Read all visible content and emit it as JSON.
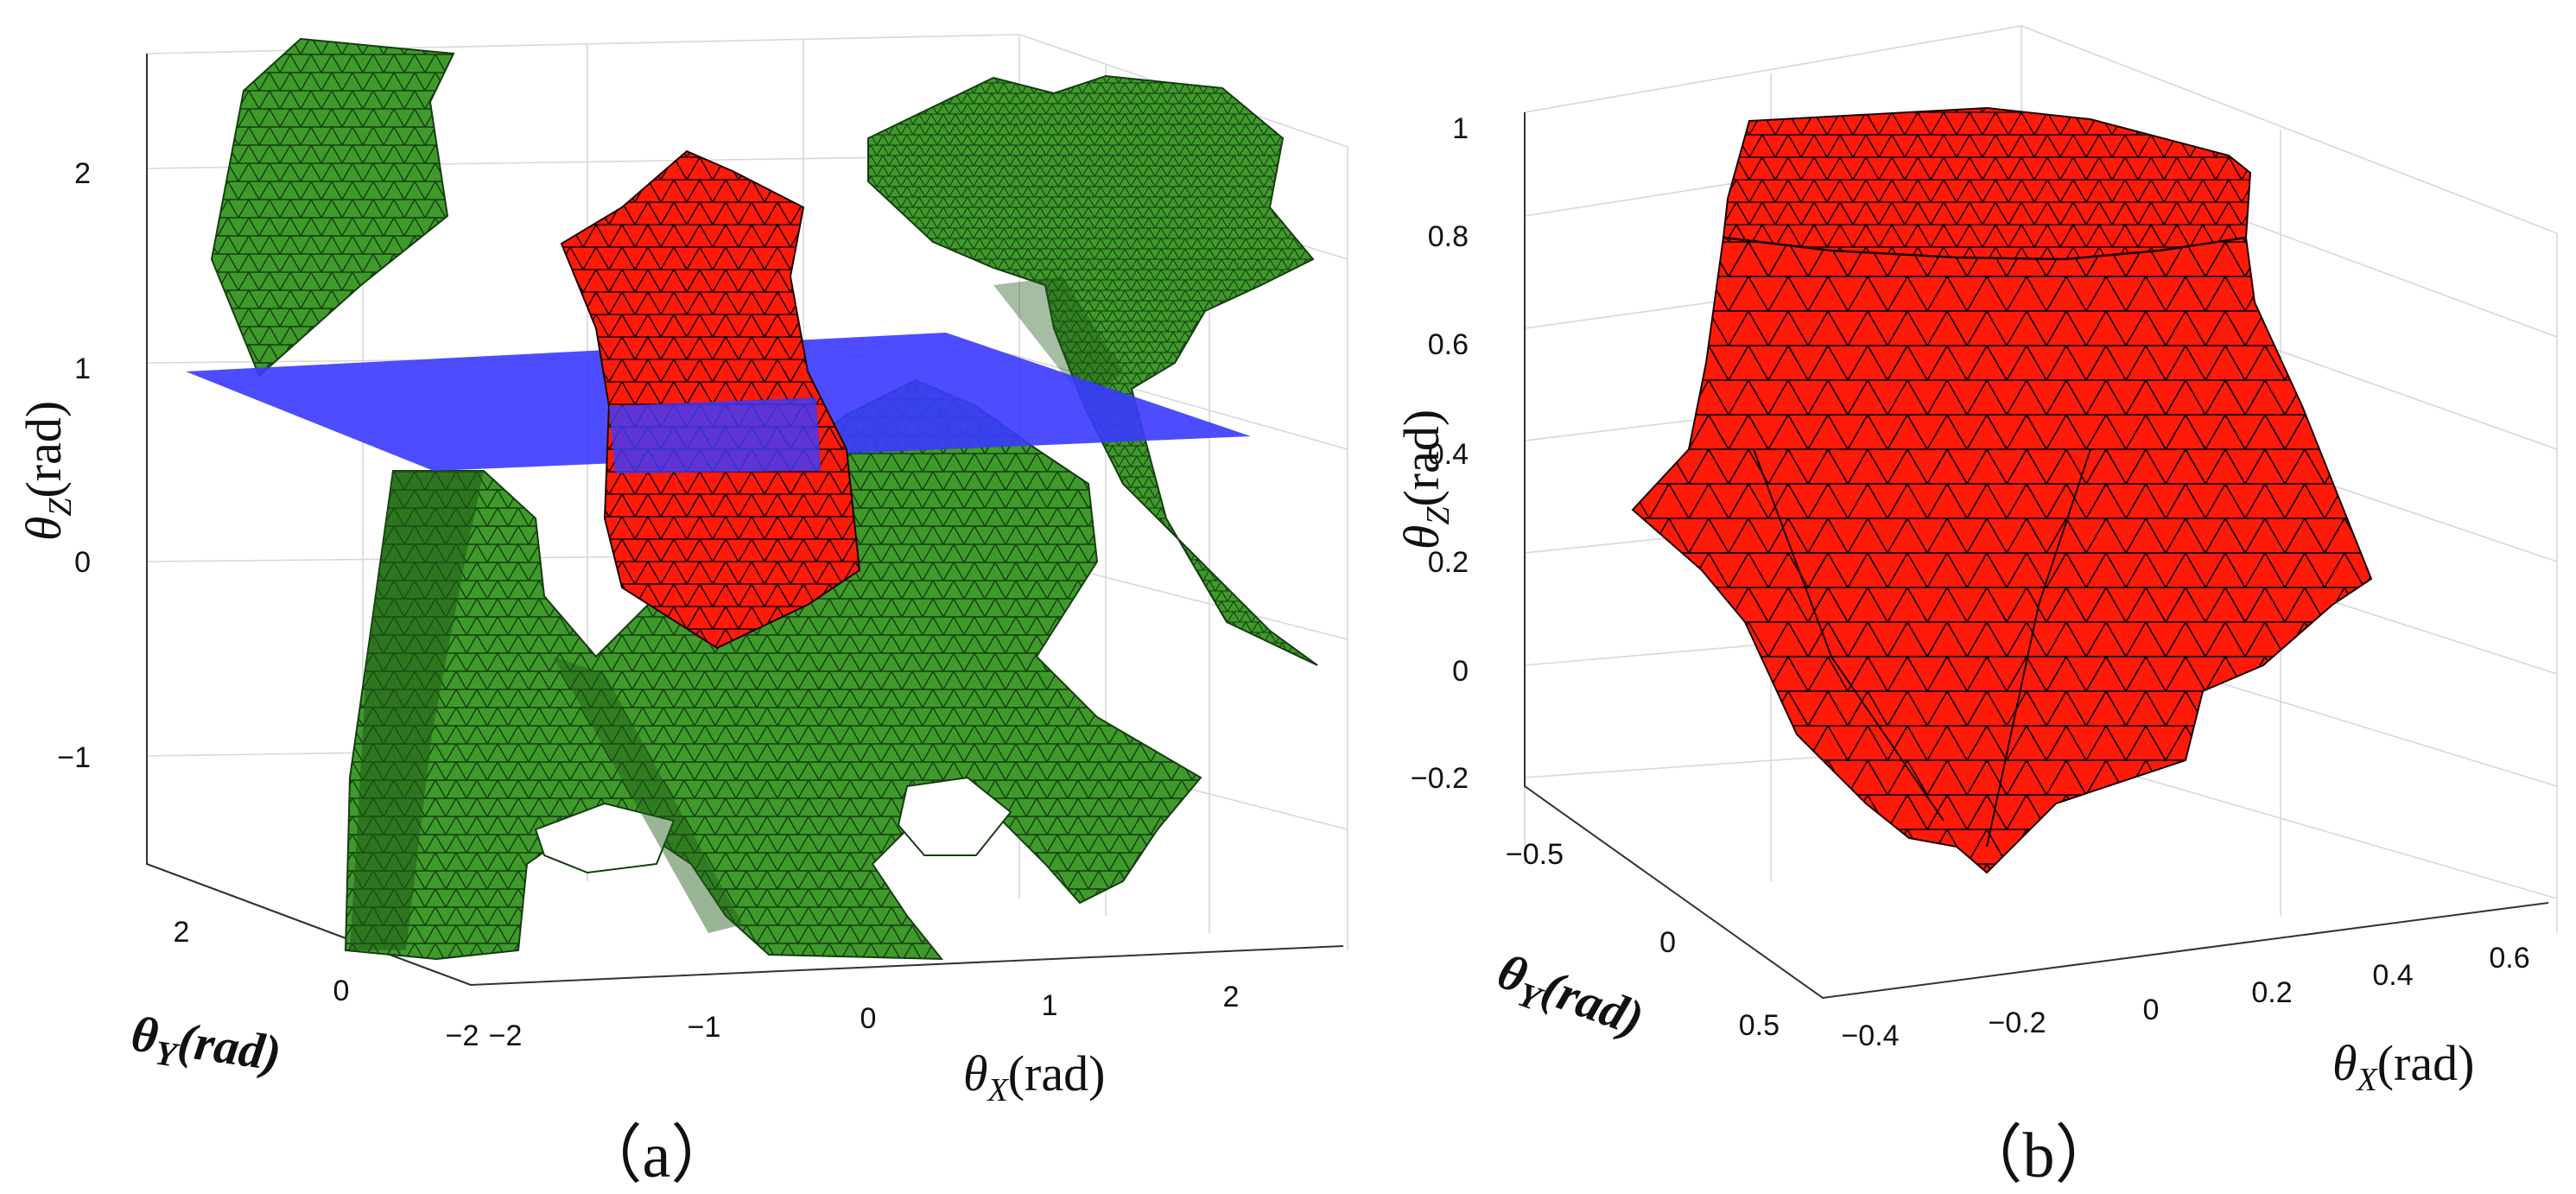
{
  "colors": {
    "feasible_surface": "#3f9a2b",
    "reachable_region": "#ff1a0a",
    "section_plane": "#3a3aff",
    "mesh_edge": "#1a1a1a"
  },
  "chart_data": [
    {
      "type": "3d-surface",
      "panel_label": "（a）",
      "x_label": {
        "symbol": "θ",
        "sub": "X",
        "unit": "(rad)"
      },
      "y_label": {
        "symbol": "θ",
        "sub": "Y",
        "unit": "(rad)"
      },
      "z_label": {
        "symbol": "θ",
        "sub": "Z",
        "unit": "(rad)"
      },
      "x_ticks": [
        "−2",
        "−1",
        "0",
        "1",
        "2"
      ],
      "y_ticks": [
        "−2",
        "0",
        "2"
      ],
      "z_ticks": [
        "2",
        "1",
        "0",
        "−1"
      ],
      "xlim": [
        -2.5,
        3
      ],
      "ylim": [
        -2.5,
        2.5
      ],
      "zlim": [
        -1.5,
        2.5
      ],
      "plane_z": 0.8,
      "grid": true,
      "series": [
        {
          "color": "green"
        },
        {
          "color": "red"
        },
        {
          "color": "blue"
        }
      ]
    },
    {
      "type": "3d-surface",
      "panel_label": "（b）",
      "x_label": {
        "symbol": "θ",
        "sub": "X",
        "unit": "(rad)"
      },
      "y_label": {
        "symbol": "θ",
        "sub": "Y",
        "unit": "(rad)"
      },
      "z_label": {
        "symbol": "θ",
        "sub": "Z",
        "unit": "(rad)"
      },
      "x_ticks": [
        "−0.4",
        "−0.2",
        "0",
        "0.2",
        "0.4",
        "0.6"
      ],
      "y_ticks": [
        "−0.5",
        "0",
        "0.5"
      ],
      "z_ticks": [
        "1",
        "0.8",
        "0.6",
        "0.4",
        "0.2",
        "0",
        "−0.2"
      ],
      "xlim": [
        -0.5,
        0.6
      ],
      "ylim": [
        -0.6,
        0.6
      ],
      "zlim": [
        -0.3,
        1.0
      ],
      "grid": true,
      "series": [
        {
          "color": "red"
        }
      ]
    }
  ]
}
